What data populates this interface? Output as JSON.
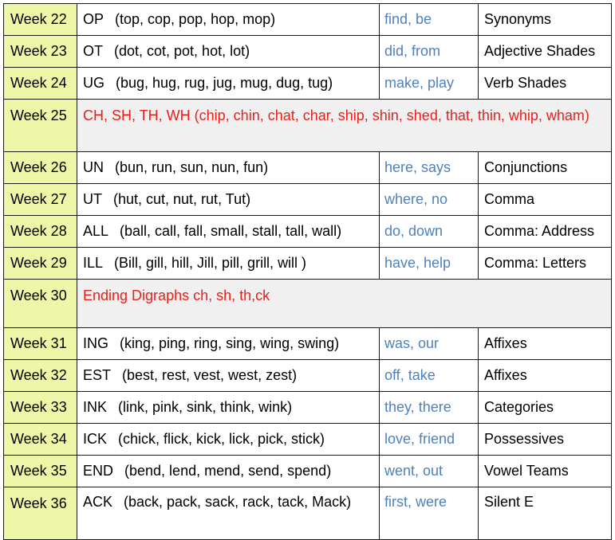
{
  "rows": [
    {
      "week": "Week 22",
      "pattern": "OP",
      "examples": "(top, cop, pop, hop, mop)",
      "sight": "find, be",
      "skill": "Synonyms"
    },
    {
      "week": "Week 23",
      "pattern": "OT",
      "examples": "(dot, cot, pot, hot, lot)",
      "sight": "did, from",
      "skill": "Adjective Shades"
    },
    {
      "week": "Week 24",
      "pattern": "UG",
      "examples": "(bug, hug, rug, jug, mug, dug, tug)",
      "sight": "make, play",
      "skill": "Verb Shades"
    },
    {
      "week": "Week 25",
      "span": "CH, SH, TH, WH  (chip, chin, chat, char, ship, shin, shed, that, thin, whip, wham)"
    },
    {
      "week": "Week 26",
      "pattern": "UN",
      "examples": "(bun, run, sun, nun, fun)",
      "sight": "here, says",
      "skill": "Conjunctions"
    },
    {
      "week": "Week 27",
      "pattern": "UT",
      "examples": "(hut, cut, nut, rut, Tut)",
      "sight": "where, no",
      "skill": "Comma"
    },
    {
      "week": "Week 28",
      "pattern": "ALL",
      "examples": "(ball, call, fall, small, stall, tall, wall)",
      "sight": "do, down",
      "skill": "Comma: Address"
    },
    {
      "week": "Week 29",
      "pattern": "ILL",
      "examples": "(Bill, gill, hill, Jill, pill, grill, will )",
      "sight": "have, help",
      "skill": "Comma: Letters"
    },
    {
      "week": "Week 30",
      "span": "Ending Digraphs ch, sh, th,ck"
    },
    {
      "week": "Week 31",
      "pattern": "ING",
      "examples": "(king, ping, ring, sing, wing, swing)",
      "sight": "was, our",
      "skill": "Affixes"
    },
    {
      "week": "Week 32",
      "pattern": "EST",
      "examples": "(best, rest, vest, west, zest)",
      "sight": "off, take",
      "skill": "Affixes"
    },
    {
      "week": "Week 33",
      "pattern": "INK",
      "examples": "(link, pink, sink, think, wink)",
      "sight": "they, there",
      "skill": "Categories"
    },
    {
      "week": "Week 34",
      "pattern": "ICK",
      "examples": "(chick, flick, kick, lick, pick, stick)",
      "sight": "love, friend",
      "skill": "Possessives"
    },
    {
      "week": "Week 35",
      "pattern": "END",
      "examples": "(bend, lend, mend, send, spend)",
      "sight": "went, out",
      "skill": "Vowel Teams"
    },
    {
      "week": "Week 36",
      "pattern": "ACK",
      "examples": "(back, pack, sack, rack, tack, Mack)",
      "sight": "first, were",
      "skill": "Silent E"
    }
  ],
  "colors": {
    "week_bg": "#eef6a8",
    "sight_text": "#4f81bd",
    "span_text": "#e8201b",
    "span_bg": "#f0f0f0"
  }
}
